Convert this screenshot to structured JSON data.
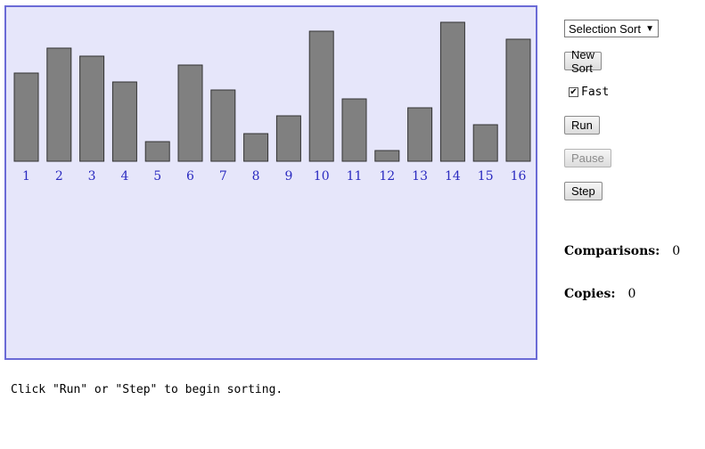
{
  "visualization": {
    "bar_heights": [
      99,
      127,
      118,
      89,
      22,
      108,
      80,
      31,
      51,
      146,
      70,
      12,
      60,
      156,
      41,
      137
    ],
    "labels": [
      "1",
      "2",
      "3",
      "4",
      "5",
      "6",
      "7",
      "8",
      "9",
      "10",
      "11",
      "12",
      "13",
      "14",
      "15",
      "16"
    ],
    "colors": {
      "background": "#e6e6fa",
      "border": "#6b6bd6",
      "bar": "#808080",
      "label": "#2a2ac0"
    }
  },
  "controls": {
    "algorithm": "Selection Sort",
    "new_sort_label": "New Sort",
    "fast_label": "Fast",
    "fast_checked": true,
    "run_label": "Run",
    "pause_label": "Pause",
    "step_label": "Step"
  },
  "stats": {
    "comparisons_label": "Comparisons:",
    "comparisons_value": "0",
    "copies_label": "Copies:",
    "copies_value": "0"
  },
  "status": "Click \"Run\" or \"Step\" to begin sorting."
}
